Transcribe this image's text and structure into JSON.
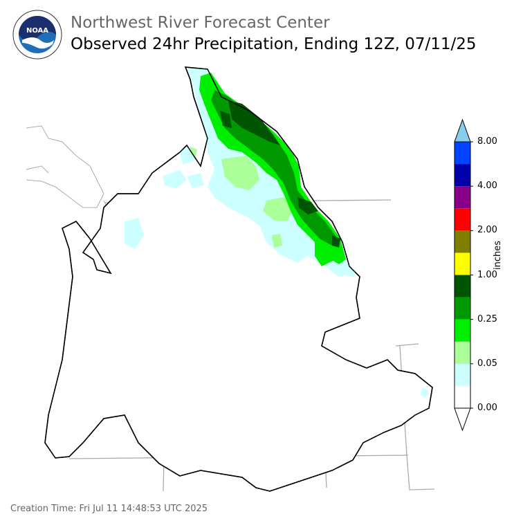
{
  "header": {
    "org_title": "Northwest River Forecast Center",
    "map_title": "Observed 24hr Precipitation, Ending 12Z, 07/11/25"
  },
  "logo": {
    "name": "noaa-logo",
    "center_text": "NOAA",
    "ring_text": "NATIONAL OCEANIC AND ATMOSPHERIC ADMINISTRATION · U.S. DEPARTMENT OF COMMERCE"
  },
  "legend": {
    "unit_label": "inches",
    "tick_labels": [
      "0.00",
      "0.05",
      "0.25",
      "1.00",
      "2.00",
      "4.00",
      "8.00"
    ],
    "colors": [
      "#ffffff",
      "#ccffff",
      "#aaff99",
      "#00ee00",
      "#009900",
      "#005500",
      "#ffff00",
      "#808000",
      "#ff0000",
      "#880088",
      "#0000aa",
      "#0044ff",
      "#88ccee"
    ]
  },
  "footer": {
    "creation_time": "Creation Time: Fri Jul 11 14:48:53 UTC 2025"
  },
  "colors": {
    "basin_outline": "#000000",
    "boundaries": "#aaaaaa",
    "title_gray": "#666666"
  }
}
